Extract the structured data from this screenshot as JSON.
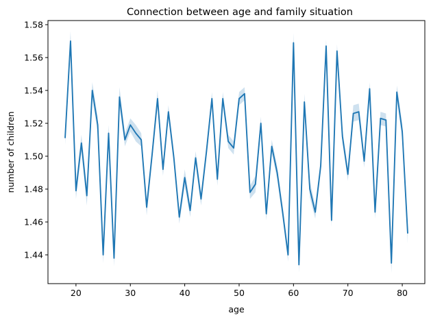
{
  "chart_data": {
    "type": "line",
    "title": "Connection between age and family situation",
    "xlabel": "age",
    "ylabel": "number of children",
    "xlim": [
      14.85,
      84.15
    ],
    "ylim": [
      1.4225,
      1.5825
    ],
    "x_ticks": [
      20,
      30,
      40,
      50,
      60,
      70,
      80
    ],
    "y_ticks": [
      1.44,
      1.46,
      1.48,
      1.5,
      1.52,
      1.54,
      1.56,
      1.58
    ],
    "y_tick_labels": [
      "1.44",
      "1.46",
      "1.48",
      "1.50",
      "1.52",
      "1.54",
      "1.56",
      "1.58"
    ],
    "grid": false,
    "legend": "none",
    "line_color": "#1f77b4",
    "band_color": "#1f77b4",
    "series": [
      {
        "x": [
          18,
          19,
          20,
          21,
          22,
          23,
          24,
          25,
          26,
          27,
          28,
          29,
          30,
          31,
          32,
          33,
          34,
          35,
          36,
          37,
          38,
          39,
          40,
          41,
          42,
          43,
          44,
          45,
          46,
          47,
          48,
          49,
          50,
          51,
          52,
          53,
          54,
          55,
          56,
          57,
          58,
          59,
          60,
          61,
          62,
          63,
          64,
          65,
          66,
          67,
          68,
          69,
          70,
          71,
          72,
          73,
          74,
          75,
          76,
          77,
          78,
          79,
          80,
          81
        ],
        "y": [
          1.511,
          1.57,
          1.479,
          1.508,
          1.476,
          1.54,
          1.519,
          1.44,
          1.514,
          1.438,
          1.536,
          1.51,
          1.519,
          1.514,
          1.51,
          1.469,
          1.501,
          1.535,
          1.492,
          1.527,
          1.499,
          1.463,
          1.487,
          1.467,
          1.499,
          1.474,
          1.503,
          1.535,
          1.486,
          1.535,
          1.509,
          1.505,
          1.535,
          1.538,
          1.478,
          1.483,
          1.52,
          1.465,
          1.506,
          1.49,
          1.466,
          1.44,
          1.569,
          1.434,
          1.533,
          1.48,
          1.466,
          1.494,
          1.567,
          1.461,
          1.564,
          1.512,
          1.489,
          1.526,
          1.527,
          1.497,
          1.541,
          1.466,
          1.523,
          1.522,
          1.435,
          1.539,
          1.515,
          1.453
        ],
        "ci_half": [
          0.004,
          0.006,
          0.005,
          0.005,
          0.006,
          0.005,
          0.005,
          0.005,
          0.005,
          0.005,
          0.006,
          0.004,
          0.004,
          0.005,
          0.004,
          0.005,
          0.004,
          0.005,
          0.004,
          0.004,
          0.004,
          0.004,
          0.005,
          0.004,
          0.004,
          0.004,
          0.004,
          0.004,
          0.004,
          0.004,
          0.004,
          0.004,
          0.004,
          0.004,
          0.004,
          0.005,
          0.004,
          0.004,
          0.004,
          0.004,
          0.004,
          0.004,
          0.006,
          0.005,
          0.005,
          0.005,
          0.004,
          0.004,
          0.004,
          0.004,
          0.004,
          0.004,
          0.004,
          0.005,
          0.005,
          0.004,
          0.004,
          0.004,
          0.004,
          0.004,
          0.006,
          0.004,
          0.005,
          0.006
        ]
      }
    ]
  }
}
